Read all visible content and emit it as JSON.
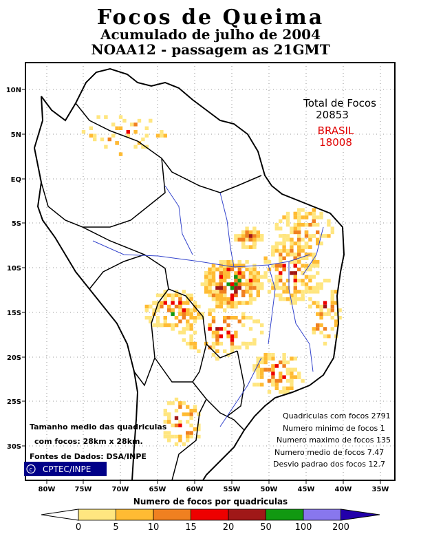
{
  "title_main": "Focos de Queima",
  "title_sub1": "Acumulado de julho de 2004",
  "title_sub2": "NOAA12 - passagem as 21GMT",
  "totals": {
    "label": "Total de Focos",
    "total": "20853",
    "country": "BRASIL",
    "country_total": "18008",
    "country_color": "#e00000"
  },
  "stats": [
    "Quadriculas com focos 2791",
    "Numero minimo de focos 1",
    "Numero maximo de focos 135",
    "Numero medio de focos 7.47",
    "Desvio padrao dos focos 12.7"
  ],
  "notes": {
    "line1": "Tamanho medio das quadriculas",
    "line2": "com focos: 28km x 28km.",
    "line3": "Fontes de Dados: DSA/INPE"
  },
  "credit": "CPTEC/INPE",
  "lat_labels": [
    "10N",
    "5N",
    "EQ",
    "5S",
    "10S",
    "15S",
    "20S",
    "25S",
    "30S"
  ],
  "lon_labels": [
    "80W",
    "75W",
    "70W",
    "65W",
    "60W",
    "55W",
    "50W",
    "45W",
    "40W",
    "35W"
  ],
  "legend": {
    "title": "Numero de focos por quadriculas",
    "ticks": [
      "0",
      "5",
      "10",
      "15",
      "20",
      "50",
      "100",
      "200"
    ],
    "colors": [
      "#ffe680",
      "#ffbb33",
      "#f08020",
      "#ee0000",
      "#a01818",
      "#119911",
      "#8877ee",
      "#2200aa"
    ]
  },
  "colors": {
    "border": "#000000",
    "rivers": "#3344cc",
    "grid": "#777777"
  }
}
